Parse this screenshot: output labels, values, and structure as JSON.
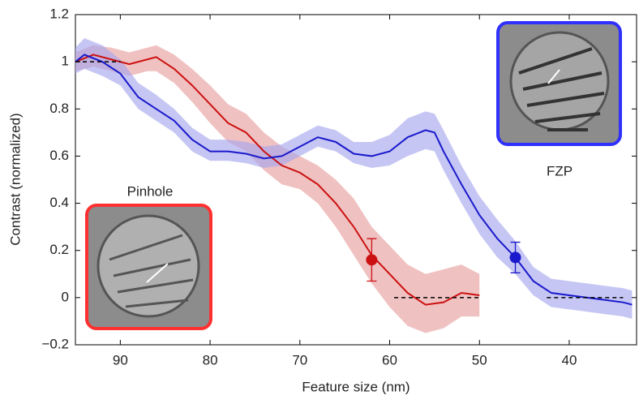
{
  "chart_data": {
    "type": "line",
    "x_label": "Feature size (nm)",
    "y_label": "Contrast (normalized)",
    "xlim": [
      95,
      32.5
    ],
    "ylim": [
      -0.2,
      1.2
    ],
    "xticks": [
      90,
      80,
      70,
      60,
      50,
      40
    ],
    "yticks": [
      {
        "value": -0.2,
        "label": "−0.2"
      },
      0,
      0.2,
      0.4,
      0.6,
      0.8,
      1,
      1.2
    ],
    "series": [
      {
        "name": "Pinhole",
        "color": "#cc1111",
        "band_color": "#e8a0a0",
        "x": [
          95,
          93,
          91,
          89,
          87,
          86,
          84,
          82,
          80,
          78,
          76,
          74,
          72,
          70,
          68,
          66,
          64,
          62,
          60,
          58,
          56,
          54,
          52,
          50
        ],
        "values": [
          1.0,
          1.03,
          1.01,
          0.99,
          1.01,
          1.02,
          0.97,
          0.9,
          0.82,
          0.74,
          0.7,
          0.62,
          0.56,
          0.53,
          0.48,
          0.4,
          0.3,
          0.18,
          0.1,
          0.02,
          -0.03,
          -0.02,
          0.02,
          0.01
        ],
        "lower": [
          0.96,
          0.98,
          0.96,
          0.94,
          0.96,
          0.96,
          0.91,
          0.83,
          0.74,
          0.66,
          0.62,
          0.54,
          0.48,
          0.46,
          0.4,
          0.3,
          0.18,
          0.06,
          -0.04,
          -0.12,
          -0.15,
          -0.13,
          -0.08,
          -0.08
        ],
        "upper": [
          1.04,
          1.07,
          1.06,
          1.04,
          1.06,
          1.07,
          1.03,
          0.97,
          0.9,
          0.82,
          0.78,
          0.7,
          0.64,
          0.6,
          0.56,
          0.5,
          0.42,
          0.3,
          0.22,
          0.14,
          0.1,
          0.12,
          0.14,
          0.1
        ],
        "point": {
          "x": 62,
          "value": 0.16,
          "error": 0.09
        },
        "reference": {
          "x": [
            59.5,
            50
          ],
          "value": 0
        }
      },
      {
        "name": "FZP",
        "color": "#1a1acc",
        "band_color": "#a8a8ee",
        "x": [
          95,
          94,
          92,
          90,
          88,
          86,
          84,
          82,
          80,
          78,
          76,
          74,
          72,
          70,
          68,
          66,
          64,
          62,
          60,
          58,
          56,
          55,
          54,
          52,
          50,
          48,
          46,
          44,
          42,
          40,
          38,
          36,
          34,
          33
        ],
        "values": [
          1.0,
          1.03,
          1.0,
          0.95,
          0.85,
          0.8,
          0.75,
          0.67,
          0.62,
          0.62,
          0.61,
          0.59,
          0.6,
          0.64,
          0.68,
          0.66,
          0.61,
          0.6,
          0.62,
          0.68,
          0.71,
          0.7,
          0.62,
          0.48,
          0.35,
          0.25,
          0.17,
          0.07,
          0.02,
          0.01,
          0.0,
          -0.01,
          -0.02,
          -0.03
        ],
        "lower": [
          0.95,
          0.97,
          0.94,
          0.9,
          0.8,
          0.75,
          0.7,
          0.62,
          0.58,
          0.58,
          0.57,
          0.55,
          0.56,
          0.6,
          0.64,
          0.62,
          0.57,
          0.55,
          0.56,
          0.6,
          0.63,
          0.62,
          0.54,
          0.4,
          0.27,
          0.17,
          0.1,
          0.01,
          -0.04,
          -0.05,
          -0.06,
          -0.07,
          -0.08,
          -0.09
        ],
        "upper": [
          1.06,
          1.1,
          1.07,
          1.01,
          0.91,
          0.86,
          0.8,
          0.72,
          0.67,
          0.67,
          0.66,
          0.64,
          0.65,
          0.69,
          0.73,
          0.71,
          0.66,
          0.66,
          0.69,
          0.76,
          0.79,
          0.78,
          0.71,
          0.56,
          0.43,
          0.33,
          0.24,
          0.13,
          0.08,
          0.07,
          0.06,
          0.05,
          0.04,
          0.03
        ],
        "point": {
          "x": 46,
          "value": 0.17,
          "error": 0.065
        },
        "reference": {
          "x": [
            42.5,
            34
          ],
          "value": 0
        }
      }
    ],
    "reference": {
      "x": [
        95,
        90
      ],
      "value": 1
    }
  }
}
